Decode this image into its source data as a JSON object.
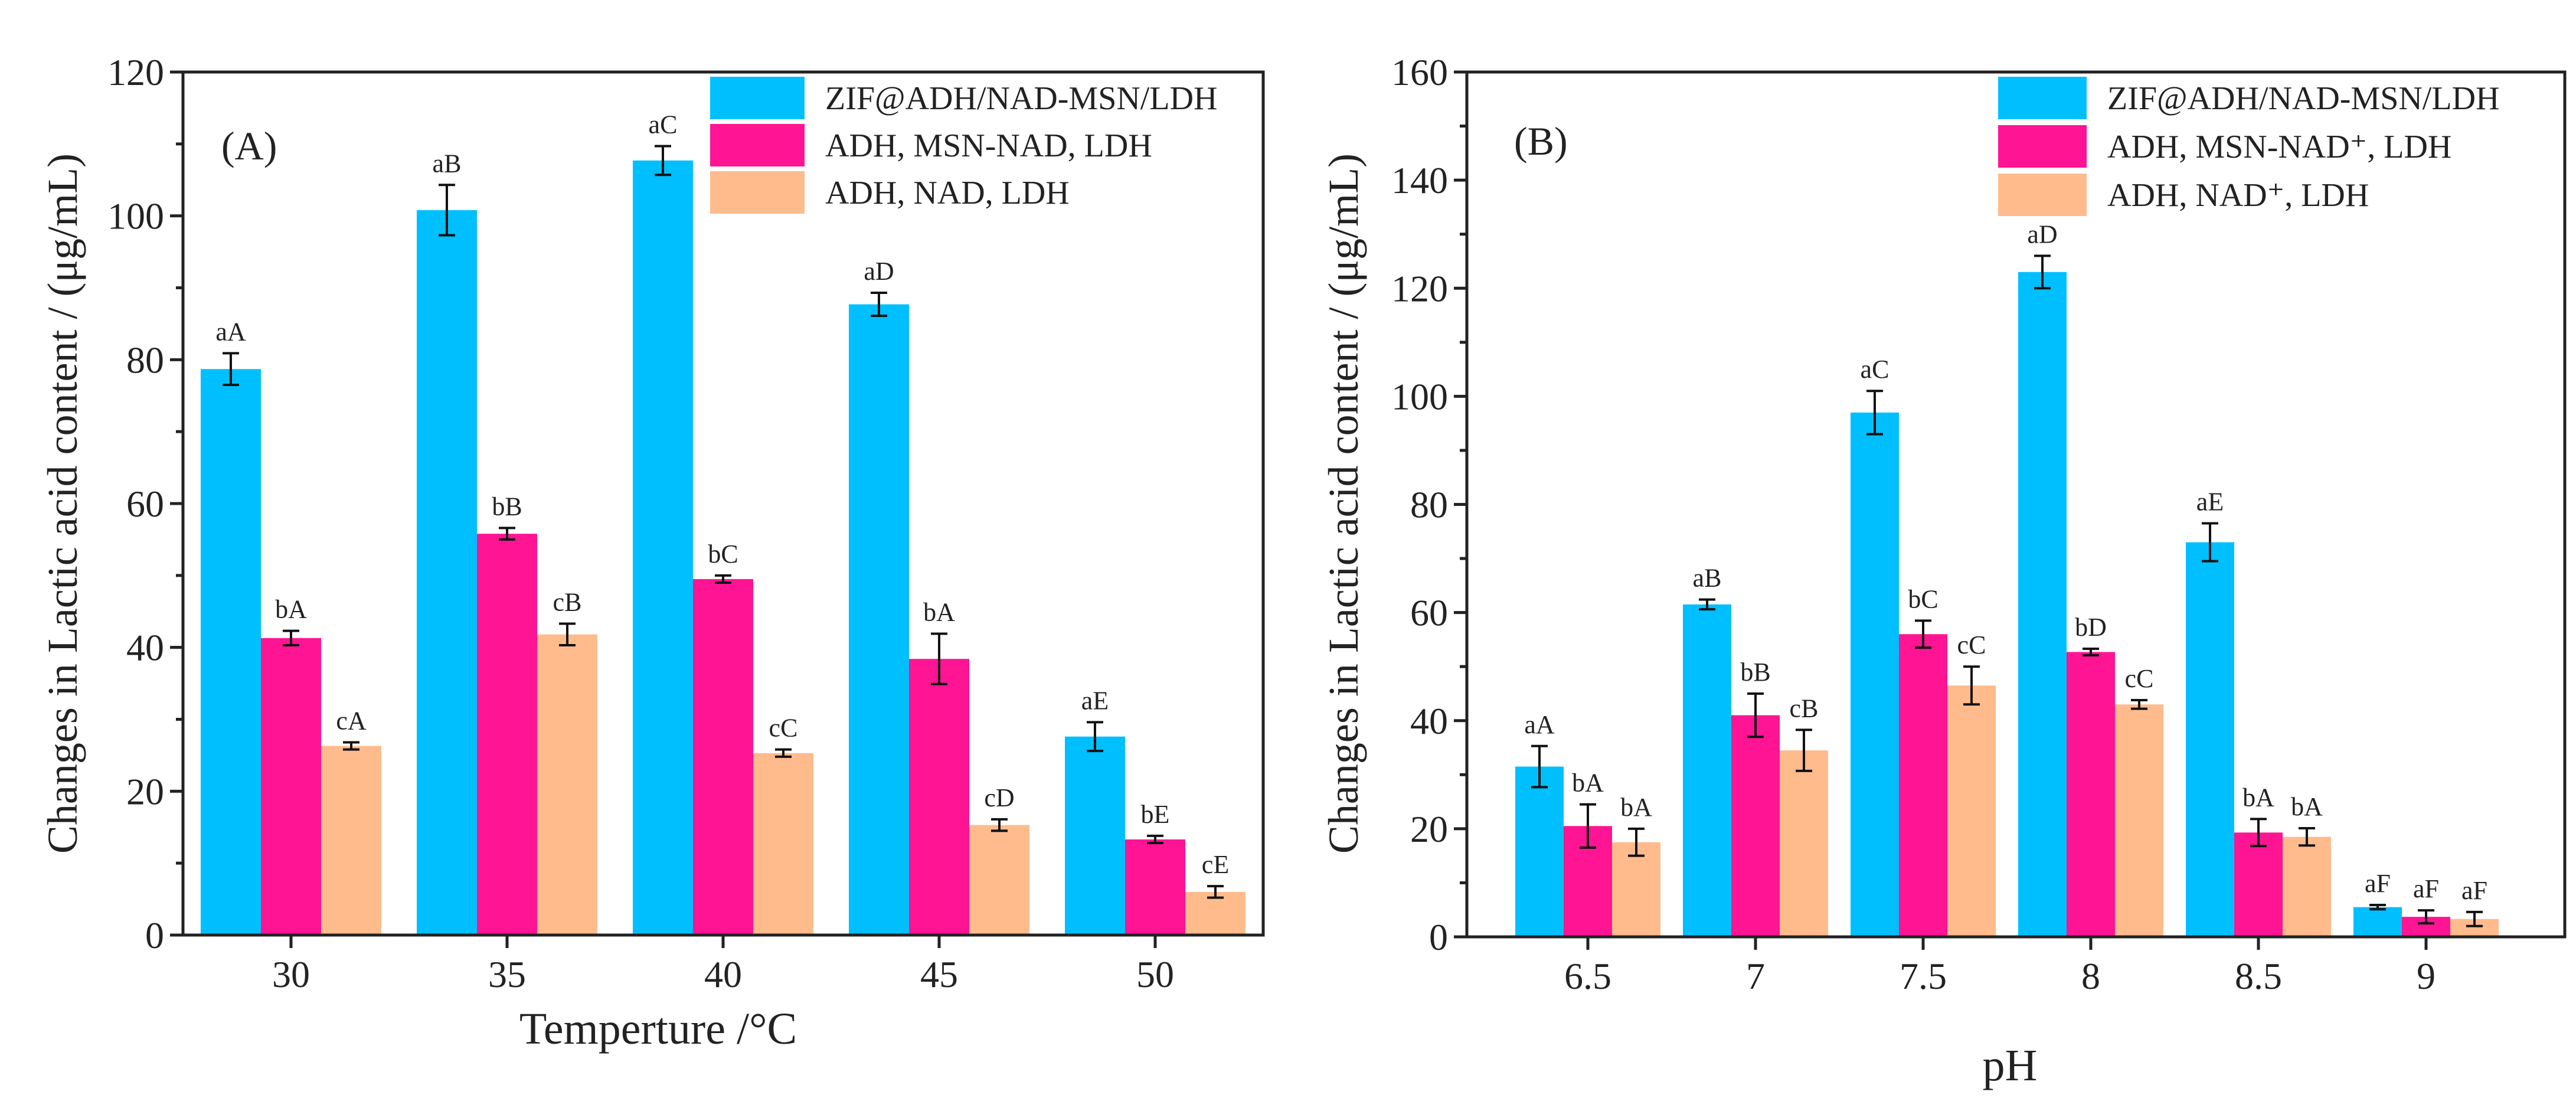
{
  "chart_data": [
    {
      "panel": "(A)",
      "type": "bar",
      "categories": [
        "30",
        "35",
        "40",
        "45",
        "50"
      ],
      "xlabel": "Temperture /°C",
      "ylabel": "Changes in Lactic acid content / (μg/mL)",
      "ylim": [
        0,
        120
      ],
      "yticks": [
        "0",
        "20",
        "40",
        "60",
        "80",
        "100",
        "120"
      ],
      "legend_position": "top-right",
      "series": [
        {
          "name": "ZIF@ADH/NAD-MSN/LDH",
          "color": "#00BFFF",
          "values": [
            78.7,
            100.8,
            107.7,
            87.7,
            27.6
          ],
          "errors": [
            2.2,
            3.5,
            2.0,
            1.6,
            2.0
          ],
          "labels": [
            "aA",
            "aB",
            "aC",
            "aD",
            "aE"
          ]
        },
        {
          "name": "ADH, MSN-NAD, LDH",
          "color": "#FF1493",
          "values": [
            41.3,
            55.8,
            49.5,
            38.4,
            13.3
          ],
          "errors": [
            1.0,
            0.8,
            0.5,
            3.5,
            0.5
          ],
          "labels": [
            "bA",
            "bB",
            "bC",
            "bA",
            "bE"
          ]
        },
        {
          "name": "ADH, NAD, LDH",
          "color": "#FFBB8C",
          "values": [
            26.3,
            41.8,
            25.3,
            15.3,
            6.0
          ],
          "errors": [
            0.5,
            1.5,
            0.5,
            0.8,
            0.8
          ],
          "labels": [
            "cA",
            "cB",
            "cC",
            "cD",
            "cE"
          ]
        }
      ]
    },
    {
      "panel": "(B)",
      "type": "bar",
      "categories": [
        "6.5",
        "7",
        "7.5",
        "8",
        "8.5",
        "9"
      ],
      "xlabel": "pH",
      "ylabel": "Changes in Lactic acid content / (μg/mL)",
      "ylim": [
        0,
        160
      ],
      "yticks": [
        "0",
        "20",
        "40",
        "60",
        "80",
        "100",
        "120",
        "140",
        "160"
      ],
      "legend_position": "top-right",
      "series": [
        {
          "name": "ZIF@ADH/NAD-MSN/LDH",
          "color": "#00BFFF",
          "values": [
            31.5,
            61.5,
            97.0,
            123.0,
            73.0,
            5.5
          ],
          "errors": [
            3.8,
            0.9,
            4.0,
            3.0,
            3.5,
            0.4
          ],
          "labels": [
            "aA",
            "aB",
            "aC",
            "aD",
            "aE",
            "aF"
          ]
        },
        {
          "name": "ADH, MSN-NAD⁺, LDH",
          "color": "#FF1493",
          "values": [
            20.5,
            41.0,
            56.0,
            52.7,
            19.3,
            3.7
          ],
          "errors": [
            4.0,
            4.0,
            2.5,
            0.6,
            2.5,
            1.2
          ],
          "labels": [
            "bA",
            "bB",
            "bC",
            "bD",
            "bA",
            "aF"
          ]
        },
        {
          "name": "ADH, NAD⁺, LDH",
          "color": "#FFBB8C",
          "values": [
            17.5,
            34.5,
            46.5,
            43.0,
            18.5,
            3.3
          ],
          "errors": [
            2.5,
            3.8,
            3.5,
            0.8,
            1.6,
            1.3
          ],
          "labels": [
            "bA",
            "cB",
            "cC",
            "cC",
            "bA",
            "aF"
          ]
        }
      ]
    }
  ]
}
